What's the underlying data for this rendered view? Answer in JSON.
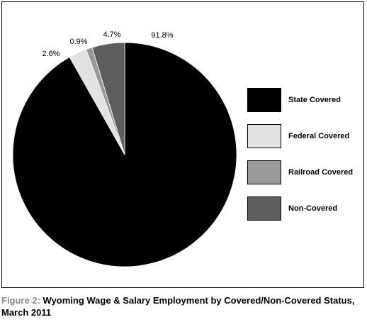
{
  "chart_data": {
    "type": "pie",
    "categories": [
      "State Covered",
      "Federal Covered",
      "Railroad Covered",
      "Non-Covered"
    ],
    "values": [
      91.8,
      2.6,
      0.9,
      4.7
    ],
    "data_labels": [
      "91.8%",
      "2.6%",
      "0.9%",
      "4.7%"
    ],
    "colors": [
      "#000000",
      "#e2e2e2",
      "#9a9a9a",
      "#5e5e5e"
    ],
    "legend_placement": "right",
    "start_angle": "top, clockwise"
  },
  "legend": [
    {
      "label": "State Covered",
      "color": "#000000"
    },
    {
      "label": "Federal Covered",
      "color": "#e2e2e2"
    },
    {
      "label": "Railroad Covered",
      "color": "#9a9a9a"
    },
    {
      "label": "Non-Covered",
      "color": "#5e5e5e"
    }
  ],
  "caption": {
    "prefix": "Figure 2:",
    "text": " Wyoming Wage & Salary Employment by Covered/Non-Covered Status, March 2011"
  }
}
